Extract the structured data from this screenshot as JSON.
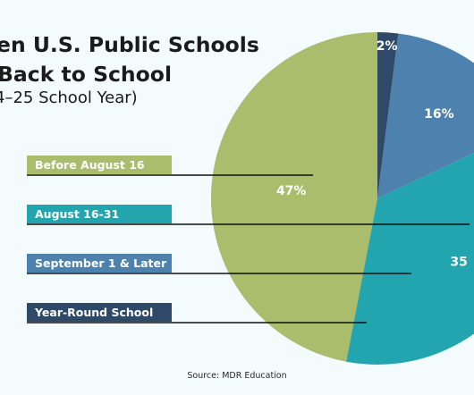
{
  "header": {
    "title_line1": "en U.S. Public Schools",
    "title_line2": "Back to School",
    "subtitle": "4–25 School Year)"
  },
  "source": "Source: MDR Education",
  "colors": {
    "background": "#f3fbfd",
    "text": "#1b1b1b",
    "before_aug_16": "#a9bd6c",
    "aug_16_31": "#23a5b0",
    "sept_1_later": "#4e82ae",
    "year_round": "#2e4a68"
  },
  "chart_data": {
    "type": "pie",
    "title": "en U.S. Public Schools Back to School",
    "subtitle": "4–25 School Year)",
    "slices": [
      {
        "label": "Before August 16",
        "value": 47,
        "value_label": "47%",
        "color": "#a9bd6c"
      },
      {
        "label": "August 16-31",
        "value": 35,
        "value_label": "35",
        "color": "#23a5b0"
      },
      {
        "label": "September 1 & Later",
        "value": 16,
        "value_label": "16%",
        "color": "#4e82ae"
      },
      {
        "label": "Year-Round School",
        "value": 2,
        "value_label": "2%",
        "color": "#2e4a68"
      }
    ],
    "legend": "left"
  }
}
